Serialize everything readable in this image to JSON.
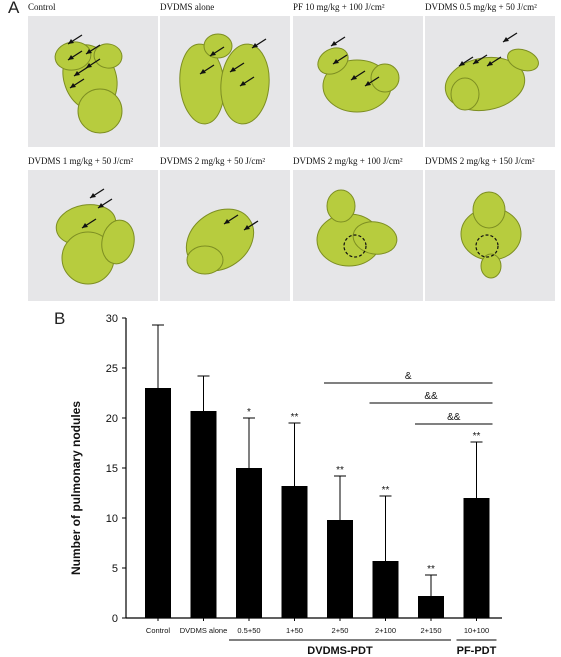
{
  "panels": {
    "a": "A",
    "b": "B"
  },
  "photos": [
    {
      "caption": "Control",
      "nodule_arrows": 6,
      "circled": false
    },
    {
      "caption": "DVDMS alone",
      "nodule_arrows": 5,
      "circled": false
    },
    {
      "caption": "PF 10 mg/kg + 100 J/cm²",
      "nodule_arrows": 4,
      "circled": false
    },
    {
      "caption": "DVDMS 0.5 mg/kg + 50 J/cm²",
      "nodule_arrows": 4,
      "circled": false
    },
    {
      "caption": "DVDMS 1 mg/kg + 50 J/cm²",
      "nodule_arrows": 3,
      "circled": false
    },
    {
      "caption": "DVDMS 2 mg/kg + 50 J/cm²",
      "nodule_arrows": 2,
      "circled": false
    },
    {
      "caption": "DVDMS 2 mg/kg + 100 J/cm²",
      "nodule_arrows": 0,
      "circled": true
    },
    {
      "caption": "DVDMS 2 mg/kg + 150 J/cm²",
      "nodule_arrows": 0,
      "circled": true
    }
  ],
  "chart_data": {
    "type": "bar",
    "ylabel": "Number of pulmonary nodules",
    "ylim": [
      0,
      30
    ],
    "yticks": [
      0,
      5,
      10,
      15,
      20,
      25,
      30
    ],
    "categories": [
      "Control",
      "DVDMS alone",
      "0.5+50",
      "1+50",
      "2+50",
      "2+100",
      "2+150",
      "10+100"
    ],
    "values": [
      23,
      20.7,
      15,
      13.2,
      9.8,
      5.7,
      2.2,
      12
    ],
    "errors": [
      6.3,
      3.5,
      5,
      6.3,
      4.4,
      6.5,
      2.1,
      5.6
    ],
    "significance": [
      "",
      "",
      "*",
      "**",
      "**",
      "**",
      "**",
      "**"
    ],
    "groups": [
      {
        "label": "DVDMS-PDT",
        "from": 2,
        "to": 6
      },
      {
        "label": "PF-PDT",
        "from": 7,
        "to": 7
      }
    ],
    "comparisons": [
      {
        "label": "&",
        "from": 4,
        "to": 7
      },
      {
        "label": "&&",
        "from": 5,
        "to": 7
      },
      {
        "label": "&&",
        "from": 6,
        "to": 7
      }
    ],
    "bar_color": "#000000"
  }
}
